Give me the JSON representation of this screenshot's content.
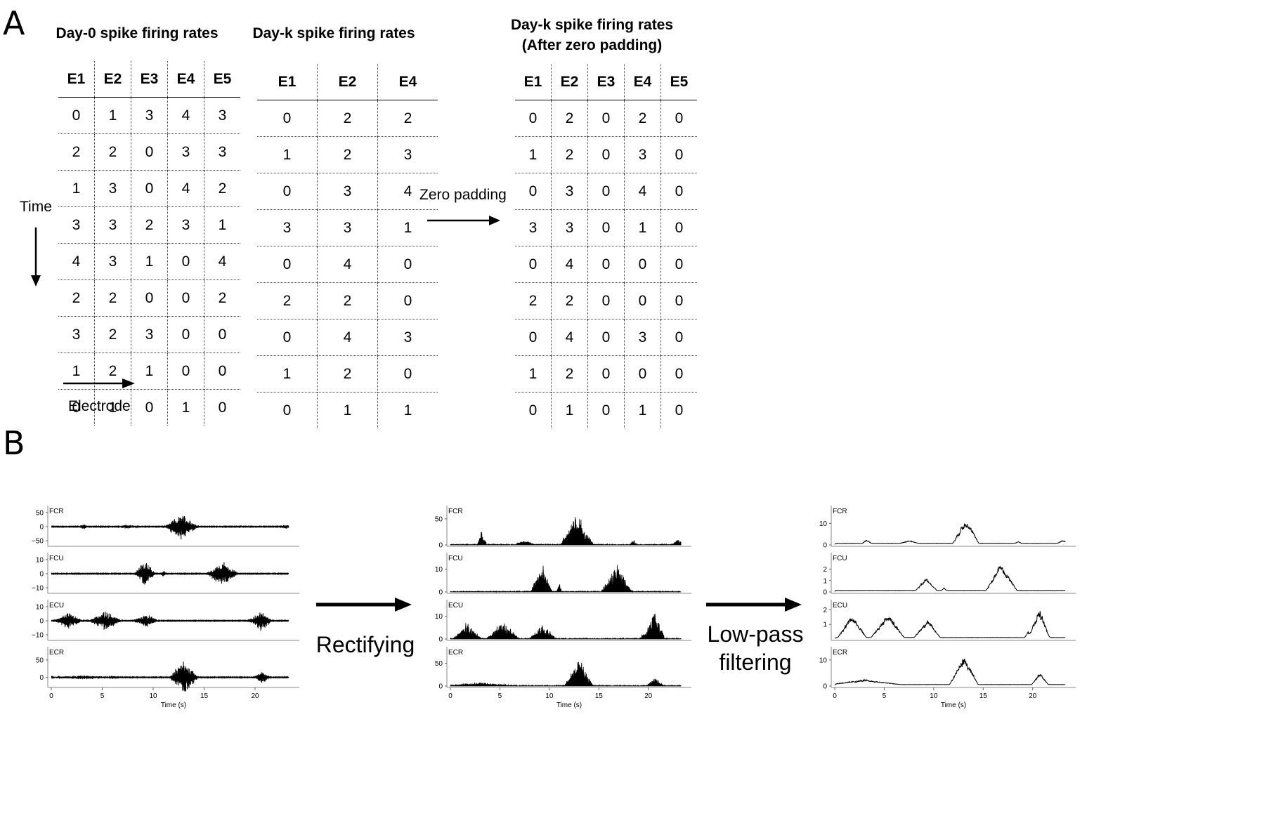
{
  "panel_a": {
    "letter": "A",
    "time_label": "Time",
    "electrode_label": "Electrode",
    "zero_padding_label": "Zero padding",
    "tables": [
      {
        "title": "Day-0 spike firing rates",
        "headers": [
          "E1",
          "E2",
          "E3",
          "E4",
          "E5"
        ],
        "rows": [
          [
            0,
            1,
            3,
            4,
            3
          ],
          [
            2,
            2,
            0,
            3,
            3
          ],
          [
            1,
            3,
            0,
            4,
            2
          ],
          [
            3,
            3,
            2,
            3,
            1
          ],
          [
            4,
            3,
            1,
            0,
            4
          ],
          [
            2,
            2,
            0,
            0,
            2
          ],
          [
            3,
            2,
            3,
            0,
            0
          ],
          [
            1,
            2,
            1,
            0,
            0
          ],
          [
            0,
            1,
            0,
            1,
            0
          ]
        ]
      },
      {
        "title": "Day-k spike firing rates",
        "headers": [
          "E1",
          "E2",
          "E4"
        ],
        "rows": [
          [
            0,
            2,
            2
          ],
          [
            1,
            2,
            3
          ],
          [
            0,
            3,
            4
          ],
          [
            3,
            3,
            1
          ],
          [
            0,
            4,
            0
          ],
          [
            2,
            2,
            0
          ],
          [
            0,
            4,
            3
          ],
          [
            1,
            2,
            0
          ],
          [
            0,
            1,
            1
          ]
        ]
      },
      {
        "title": "Day-k spike firing rates\n(After zero padding)",
        "headers": [
          "E1",
          "E2",
          "E3",
          "E4",
          "E5"
        ],
        "rows": [
          [
            0,
            2,
            0,
            2,
            0
          ],
          [
            1,
            2,
            0,
            3,
            0
          ],
          [
            0,
            3,
            0,
            4,
            0
          ],
          [
            3,
            3,
            0,
            1,
            0
          ],
          [
            0,
            4,
            0,
            0,
            0
          ],
          [
            2,
            2,
            0,
            0,
            0
          ],
          [
            0,
            4,
            0,
            3,
            0
          ],
          [
            1,
            2,
            0,
            0,
            0
          ],
          [
            0,
            1,
            0,
            1,
            0
          ]
        ]
      }
    ]
  },
  "panel_b": {
    "letter": "B",
    "rectifying_label": "Rectifying",
    "lowpass_label": "Low-pass\nfiltering",
    "channels": [
      "FCR",
      "FCU",
      "ECU",
      "ECR"
    ],
    "x_label": "Time (s)",
    "x_ticks": [
      0,
      5,
      10,
      15,
      20
    ]
  },
  "chart_data": [
    {
      "type": "line",
      "description_stage": "raw",
      "xlabel": "Time (s)",
      "xlim": [
        0,
        24
      ],
      "x_ticks": [
        0,
        5,
        10,
        15,
        20
      ],
      "series": [
        {
          "name": "FCR",
          "yticks": [
            -50,
            0,
            50
          ],
          "ylim": [
            -65,
            65
          ],
          "bursts": [
            [
              3.2,
              0.4,
              10
            ],
            [
              7.5,
              0.8,
              8
            ],
            [
              12.8,
              1.4,
              50
            ],
            [
              18.5,
              0.3,
              5
            ],
            [
              23.0,
              0.5,
              8
            ]
          ]
        },
        {
          "name": "FCU",
          "yticks": [
            -10,
            0,
            10
          ],
          "ylim": [
            -13,
            13
          ],
          "bursts": [
            [
              9.2,
              0.9,
              10
            ],
            [
              16.8,
              1.3,
              10
            ],
            [
              11.0,
              0.2,
              3
            ]
          ]
        },
        {
          "name": "ECU",
          "yticks": [
            -10,
            0,
            10
          ],
          "ylim": [
            -13,
            13
          ],
          "bursts": [
            [
              1.7,
              1.2,
              6
            ],
            [
              5.3,
              1.4,
              7
            ],
            [
              9.3,
              1.1,
              5
            ],
            [
              19.5,
              0.3,
              2
            ],
            [
              20.6,
              0.9,
              8
            ]
          ]
        },
        {
          "name": "ECR",
          "yticks": [
            0,
            50
          ],
          "ylim": [
            -25,
            80
          ],
          "bursts": [
            [
              13.0,
              1.2,
              55
            ],
            [
              20.7,
              0.7,
              18
            ],
            [
              3.0,
              3.0,
              5
            ]
          ]
        }
      ]
    },
    {
      "type": "area",
      "description_stage": "rectified",
      "xlabel": "Time (s)",
      "xlim": [
        0,
        24
      ],
      "x_ticks": [
        0,
        5,
        10,
        15,
        20
      ],
      "series": [
        {
          "name": "FCR",
          "yticks": [
            0,
            50
          ],
          "ylim": [
            0,
            70
          ],
          "bursts": [
            [
              3.2,
              0.4,
              30
            ],
            [
              7.5,
              0.8,
              10
            ],
            [
              12.8,
              1.4,
              65
            ],
            [
              18.5,
              0.3,
              10
            ],
            [
              23.0,
              0.5,
              10
            ]
          ]
        },
        {
          "name": "FCU",
          "yticks": [
            0,
            10
          ],
          "ylim": [
            0,
            16
          ],
          "bursts": [
            [
              9.2,
              0.9,
              14
            ],
            [
              16.8,
              1.3,
              14
            ],
            [
              11.0,
              0.2,
              5
            ]
          ]
        },
        {
          "name": "ECU",
          "yticks": [
            0,
            10
          ],
          "ylim": [
            0,
            16
          ],
          "bursts": [
            [
              1.7,
              1.2,
              8
            ],
            [
              5.3,
              1.4,
              9
            ],
            [
              9.3,
              1.1,
              8
            ],
            [
              19.5,
              0.3,
              3
            ],
            [
              20.6,
              0.9,
              15
            ]
          ]
        },
        {
          "name": "ECR",
          "yticks": [
            0,
            50
          ],
          "ylim": [
            0,
            80
          ],
          "bursts": [
            [
              13.0,
              1.2,
              70
            ],
            [
              20.7,
              0.7,
              20
            ],
            [
              3.0,
              3.0,
              7
            ]
          ]
        }
      ]
    },
    {
      "type": "line",
      "description_stage": "low-pass filtered",
      "xlabel": "Time (s)",
      "xlim": [
        0,
        24
      ],
      "x_ticks": [
        0,
        5,
        10,
        15,
        20
      ],
      "series": [
        {
          "name": "FCR",
          "yticks": [
            0,
            10
          ],
          "ylim": [
            0,
            17
          ],
          "bursts": [
            [
              3.2,
              0.4,
              2
            ],
            [
              7.5,
              0.8,
              1.5
            ],
            [
              13.2,
              1.1,
              13
            ],
            [
              18.5,
              0.3,
              1
            ],
            [
              23.0,
              0.5,
              1.5
            ]
          ]
        },
        {
          "name": "FCU",
          "yticks": [
            0,
            1,
            2
          ],
          "ylim": [
            0,
            3.2
          ],
          "bursts": [
            [
              9.2,
              0.9,
              1.2
            ],
            [
              16.8,
              1.3,
              2.7
            ],
            [
              11.0,
              0.2,
              0.3
            ]
          ]
        },
        {
          "name": "ECU",
          "yticks": [
            1,
            2
          ],
          "ylim": [
            0,
            2.5
          ],
          "bursts": [
            [
              1.7,
              1.2,
              1.8
            ],
            [
              5.3,
              1.4,
              1.8
            ],
            [
              9.3,
              1.1,
              1.4
            ],
            [
              19.5,
              0.3,
              0.5
            ],
            [
              20.6,
              0.9,
              2.2
            ]
          ]
        },
        {
          "name": "ECR",
          "yticks": [
            0,
            10
          ],
          "ylim": [
            0,
            14
          ],
          "bursts": [
            [
              13.0,
              1.2,
              12
            ],
            [
              20.7,
              0.7,
              5
            ],
            [
              3.0,
              3.0,
              2
            ]
          ]
        }
      ]
    }
  ]
}
